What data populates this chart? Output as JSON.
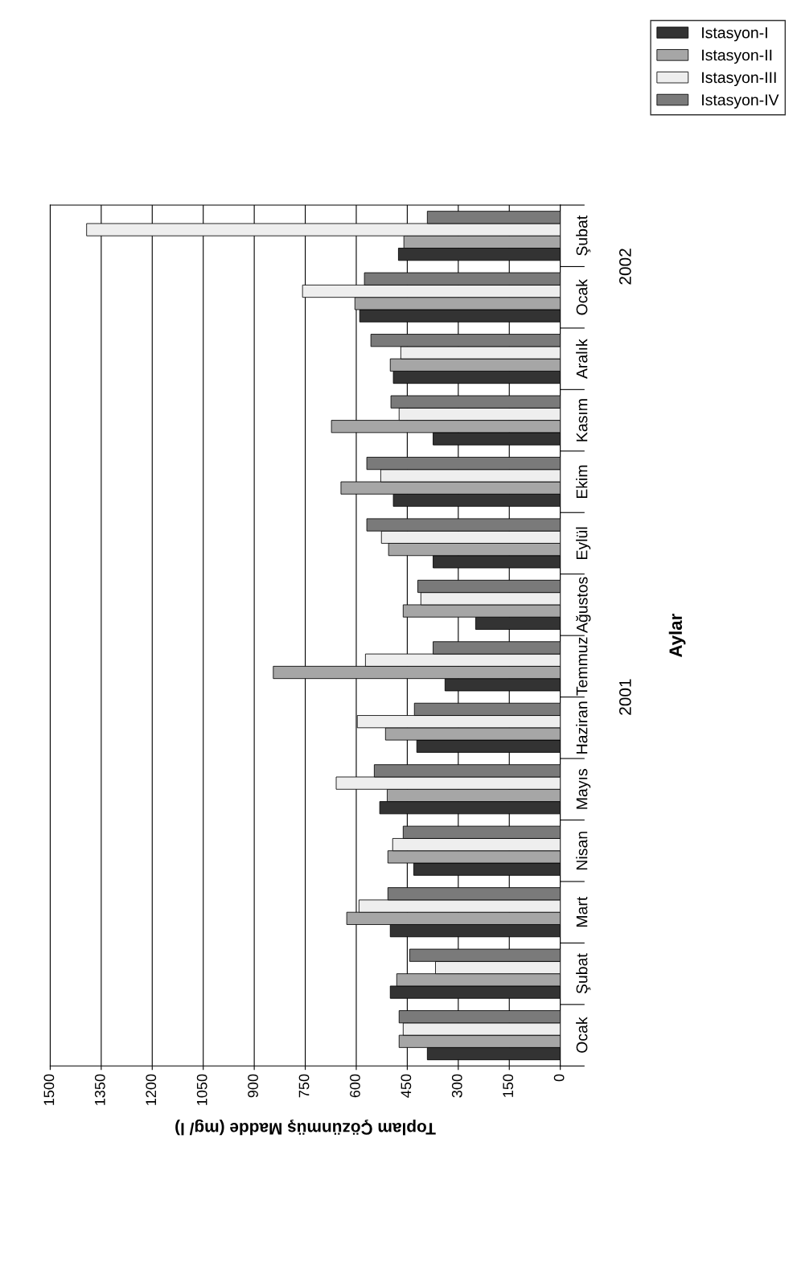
{
  "chart_data": {
    "type": "bar",
    "orientation": "horizontal",
    "xlabel": "Toplam Çözünmüş Madde (mg/ l)",
    "ylabel": "Aylar",
    "categories": [
      "Şubat",
      "Ocak",
      "Aralık",
      "Kasım",
      "Ekim",
      "Eylül",
      "Ağustos",
      "Temmuz",
      "Haziran",
      "Mayıs",
      "Nisan",
      "Mart",
      "Şubat",
      "Ocak"
    ],
    "series": [
      {
        "name": "Istasyon-I",
        "color": "#333333",
        "values": [
          476,
          590,
          491,
          374,
          491,
          374,
          249,
          339,
          422,
          531,
          431,
          500,
          500,
          391
        ]
      },
      {
        "name": "Istasyon-II",
        "color": "#a6a6a6",
        "values": [
          460,
          604,
          500,
          673,
          645,
          505,
          462,
          844,
          514,
          509,
          507,
          628,
          481,
          474
        ]
      },
      {
        "name": "Istasyon-III",
        "color": "#eeeeee",
        "values": [
          1393,
          758,
          469,
          474,
          528,
          526,
          410,
          573,
          597,
          659,
          493,
          592,
          367,
          462
        ]
      },
      {
        "name": "Istasyon-IV",
        "color": "#7a7a7a",
        "values": [
          391,
          576,
          557,
          498,
          569,
          569,
          419,
          374,
          429,
          547,
          462,
          507,
          443,
          474
        ]
      }
    ],
    "xlim": [
      1500,
      0
    ],
    "xticks": [
      0,
      150,
      300,
      450,
      600,
      750,
      900,
      1050,
      1200,
      1350,
      1500
    ],
    "grid": "x",
    "legend": "top right",
    "annotations": [
      "2001",
      "2002"
    ]
  }
}
